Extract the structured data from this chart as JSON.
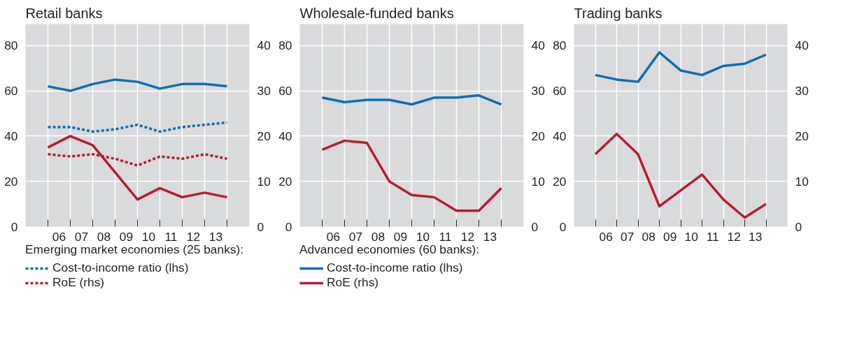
{
  "chart_data": [
    {
      "type": "line",
      "title": "Retail banks",
      "legend_title": "Emerging market economies (25 banks):",
      "legend": "bottom",
      "grid": true,
      "x": [
        2005.5,
        2006.5,
        2007.5,
        2008.5,
        2009.5,
        2010.5,
        2011.5,
        2012.5,
        2013.5
      ],
      "xlim": [
        2004.5,
        2014.5
      ],
      "xticks": [
        {
          "value": 2005.5,
          "label": null
        },
        {
          "value": 2006,
          "label": "06"
        },
        {
          "value": 2006.5,
          "label": null
        },
        {
          "value": 2007,
          "label": "07"
        },
        {
          "value": 2007.5,
          "label": null
        },
        {
          "value": 2008,
          "label": "08"
        },
        {
          "value": 2008.5,
          "label": null
        },
        {
          "value": 2009,
          "label": "09"
        },
        {
          "value": 2009.5,
          "label": null
        },
        {
          "value": 2010,
          "label": "10"
        },
        {
          "value": 2010.5,
          "label": null
        },
        {
          "value": 2011,
          "label": "11"
        },
        {
          "value": 2011.5,
          "label": null
        },
        {
          "value": 2012,
          "label": "12"
        },
        {
          "value": 2012.5,
          "label": null
        },
        {
          "value": 2013,
          "label": "13"
        },
        {
          "value": 2013.5,
          "label": null
        }
      ],
      "ylim": [
        0,
        89.5
      ],
      "yticks": [
        0,
        20,
        40,
        60,
        80
      ],
      "y2lim": [
        0,
        44.75
      ],
      "y2ticks": [
        0,
        10,
        20,
        30,
        40
      ],
      "series": [
        {
          "name": "Cost-to-income ratio (lhs)",
          "color": "#0a6fb7",
          "line_style": "dotted",
          "values": [
            44,
            44,
            42,
            43,
            45,
            42,
            44,
            45,
            46
          ]
        },
        {
          "name": "RoE (rhs)",
          "color": "#b81c32",
          "line_style": "dotted",
          "axis": "y2",
          "values": [
            16,
            15.5,
            16,
            15,
            13.5,
            15.5,
            15,
            16,
            15
          ]
        },
        {
          "color": "#0a6fb7",
          "line_style": "solid",
          "values": [
            62,
            60,
            63,
            65,
            64,
            61,
            63,
            63,
            62
          ]
        },
        {
          "color": "#b81c32",
          "line_style": "solid",
          "axis": "y2",
          "values": [
            17.5,
            20,
            18,
            12,
            6,
            8.5,
            6.5,
            7.5,
            6.5
          ]
        }
      ]
    },
    {
      "type": "line",
      "title": "Wholesale-funded banks",
      "legend_title": "Advanced economies (60 banks):",
      "legend": "bottom",
      "grid": true,
      "x": [
        2005.5,
        2006.5,
        2007.5,
        2008.5,
        2009.5,
        2010.5,
        2011.5,
        2012.5,
        2013.5
      ],
      "xlim": [
        2004.5,
        2014.5
      ],
      "xticks": [
        {
          "value": 2005.5,
          "label": null
        },
        {
          "value": 2006,
          "label": "06"
        },
        {
          "value": 2006.5,
          "label": null
        },
        {
          "value": 2007,
          "label": "07"
        },
        {
          "value": 2007.5,
          "label": null
        },
        {
          "value": 2008,
          "label": "08"
        },
        {
          "value": 2008.5,
          "label": null
        },
        {
          "value": 2009,
          "label": "09"
        },
        {
          "value": 2009.5,
          "label": null
        },
        {
          "value": 2010,
          "label": "10"
        },
        {
          "value": 2010.5,
          "label": null
        },
        {
          "value": 2011,
          "label": "11"
        },
        {
          "value": 2011.5,
          "label": null
        },
        {
          "value": 2012,
          "label": "12"
        },
        {
          "value": 2012.5,
          "label": null
        },
        {
          "value": 2013,
          "label": "13"
        },
        {
          "value": 2013.5,
          "label": null
        }
      ],
      "ylim": [
        0,
        89.5
      ],
      "yticks": [
        0,
        20,
        40,
        60,
        80
      ],
      "y2lim": [
        0,
        44.75
      ],
      "y2ticks": [
        0,
        10,
        20,
        30,
        40
      ],
      "series": [
        {
          "name": "Cost-to-income ratio (lhs)",
          "color": "#0a6fb7",
          "line_style": "solid",
          "values": [
            57,
            55,
            56,
            56,
            54,
            57,
            57,
            58,
            54
          ]
        },
        {
          "name": "RoE (rhs)",
          "color": "#b81c32",
          "line_style": "solid",
          "axis": "y2",
          "values": [
            17,
            19,
            18.5,
            10,
            7,
            6.5,
            3.5,
            3.5,
            8.5
          ]
        }
      ]
    },
    {
      "type": "line",
      "title": "Trading banks",
      "grid": true,
      "x": [
        2005.5,
        2006.5,
        2007.5,
        2008.5,
        2009.5,
        2010.5,
        2011.5,
        2012.5,
        2013.5
      ],
      "xlim": [
        2004.5,
        2014.5
      ],
      "xticks": [
        {
          "value": 2005.5,
          "label": null
        },
        {
          "value": 2006,
          "label": "06"
        },
        {
          "value": 2006.5,
          "label": null
        },
        {
          "value": 2007,
          "label": "07"
        },
        {
          "value": 2007.5,
          "label": null
        },
        {
          "value": 2008,
          "label": "08"
        },
        {
          "value": 2008.5,
          "label": null
        },
        {
          "value": 2009,
          "label": "09"
        },
        {
          "value": 2009.5,
          "label": null
        },
        {
          "value": 2010,
          "label": "10"
        },
        {
          "value": 2010.5,
          "label": null
        },
        {
          "value": 2011,
          "label": "11"
        },
        {
          "value": 2011.5,
          "label": null
        },
        {
          "value": 2012,
          "label": "12"
        },
        {
          "value": 2012.5,
          "label": null
        },
        {
          "value": 2013,
          "label": "13"
        },
        {
          "value": 2013.5,
          "label": null
        }
      ],
      "ylim": [
        0,
        89.5
      ],
      "yticks": [
        0,
        20,
        40,
        60,
        80
      ],
      "y2lim": [
        0,
        44.75
      ],
      "y2ticks": [
        0,
        10,
        20,
        30,
        40
      ],
      "series": [
        {
          "color": "#0a6fb7",
          "line_style": "solid",
          "values": [
            67,
            65,
            64,
            77,
            69,
            67,
            71,
            72,
            76
          ]
        },
        {
          "color": "#b81c32",
          "line_style": "solid",
          "axis": "y2",
          "values": [
            16,
            20.5,
            16,
            4.5,
            8,
            11.5,
            6,
            2,
            5
          ]
        }
      ]
    }
  ]
}
